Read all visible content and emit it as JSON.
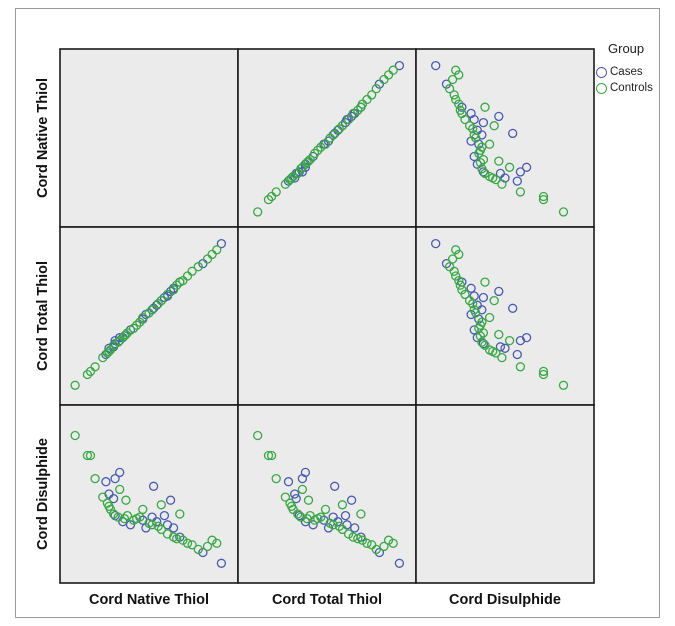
{
  "chart_data": {
    "type": "scatter",
    "variables": [
      "Cord Native Thiol",
      "Cord Total Thiol",
      "Cord Disulphide"
    ],
    "legend": {
      "title": "Group",
      "position": "top-right",
      "items": [
        {
          "name": "Cases",
          "color": "#4a5bb0"
        },
        {
          "name": "Controls",
          "color": "#3aa845"
        }
      ]
    },
    "grid": false,
    "panel_background": "#ebebeb",
    "series": [
      {
        "name": "Cases",
        "color": "#4a5bb0",
        "points": [
          {
            "native": 0.97,
            "total": 0.97,
            "disulphide": 0.05
          },
          {
            "native": 0.7,
            "total": 0.72,
            "disulphide": 0.22
          },
          {
            "native": 0.66,
            "total": 0.68,
            "disulphide": 0.28
          },
          {
            "native": 0.6,
            "total": 0.62,
            "disulphide": 0.36
          },
          {
            "native": 0.62,
            "total": 0.63,
            "disulphide": 0.3
          },
          {
            "native": 0.55,
            "total": 0.57,
            "disulphide": 0.32
          },
          {
            "native": 0.52,
            "total": 0.54,
            "disulphide": 0.35
          },
          {
            "native": 0.46,
            "total": 0.48,
            "disulphide": 0.33
          },
          {
            "native": 0.38,
            "total": 0.41,
            "disulphide": 0.3
          },
          {
            "native": 0.33,
            "total": 0.36,
            "disulphide": 0.32
          },
          {
            "native": 0.28,
            "total": 0.32,
            "disulphide": 0.36
          },
          {
            "native": 0.22,
            "total": 0.25,
            "disulphide": 0.58
          },
          {
            "native": 0.24,
            "total": 0.29,
            "disulphide": 0.5
          },
          {
            "native": 0.28,
            "total": 0.34,
            "disulphide": 0.6
          },
          {
            "native": 0.31,
            "total": 0.36,
            "disulphide": 0.64
          },
          {
            "native": 0.27,
            "total": 0.3,
            "disulphide": 0.47
          },
          {
            "native": 0.53,
            "total": 0.55,
            "disulphide": 0.55
          },
          {
            "native": 0.64,
            "total": 0.66,
            "disulphide": 0.46
          },
          {
            "native": 0.85,
            "total": 0.84,
            "disulphide": 0.12
          },
          {
            "native": 0.48,
            "total": 0.51,
            "disulphide": 0.28
          }
        ]
      },
      {
        "name": "Controls",
        "color": "#3aa845",
        "points": [
          {
            "native": 0.02,
            "total": 0.05,
            "disulphide": 0.88
          },
          {
            "native": 0.1,
            "total": 0.12,
            "disulphide": 0.75
          },
          {
            "native": 0.12,
            "total": 0.14,
            "disulphide": 0.75
          },
          {
            "native": 0.15,
            "total": 0.17,
            "disulphide": 0.6
          },
          {
            "native": 0.2,
            "total": 0.23,
            "disulphide": 0.48
          },
          {
            "native": 0.23,
            "total": 0.26,
            "disulphide": 0.44
          },
          {
            "native": 0.25,
            "total": 0.28,
            "disulphide": 0.4
          },
          {
            "native": 0.27,
            "total": 0.31,
            "disulphide": 0.37
          },
          {
            "native": 0.3,
            "total": 0.33,
            "disulphide": 0.35
          },
          {
            "native": 0.34,
            "total": 0.37,
            "disulphide": 0.34
          },
          {
            "native": 0.36,
            "total": 0.39,
            "disulphide": 0.36
          },
          {
            "native": 0.4,
            "total": 0.42,
            "disulphide": 0.33
          },
          {
            "native": 0.42,
            "total": 0.44,
            "disulphide": 0.34
          },
          {
            "native": 0.44,
            "total": 0.46,
            "disulphide": 0.35
          },
          {
            "native": 0.5,
            "total": 0.52,
            "disulphide": 0.31
          },
          {
            "native": 0.56,
            "total": 0.58,
            "disulphide": 0.29
          },
          {
            "native": 0.58,
            "total": 0.6,
            "disulphide": 0.27
          },
          {
            "native": 0.62,
            "total": 0.64,
            "disulphide": 0.24
          },
          {
            "native": 0.66,
            "total": 0.67,
            "disulphide": 0.22
          },
          {
            "native": 0.68,
            "total": 0.7,
            "disulphide": 0.21
          },
          {
            "native": 0.72,
            "total": 0.73,
            "disulphide": 0.2
          },
          {
            "native": 0.75,
            "total": 0.76,
            "disulphide": 0.18
          },
          {
            "native": 0.78,
            "total": 0.79,
            "disulphide": 0.17
          },
          {
            "native": 0.82,
            "total": 0.82,
            "disulphide": 0.14
          },
          {
            "native": 0.88,
            "total": 0.87,
            "disulphide": 0.16
          },
          {
            "native": 0.91,
            "total": 0.9,
            "disulphide": 0.2
          },
          {
            "native": 0.94,
            "total": 0.93,
            "disulphide": 0.18
          },
          {
            "native": 0.31,
            "total": 0.34,
            "disulphide": 0.53
          },
          {
            "native": 0.35,
            "total": 0.38,
            "disulphide": 0.46
          },
          {
            "native": 0.46,
            "total": 0.49,
            "disulphide": 0.4
          },
          {
            "native": 0.58,
            "total": 0.6,
            "disulphide": 0.43
          },
          {
            "native": 0.7,
            "total": 0.72,
            "disulphide": 0.37
          },
          {
            "native": 0.24,
            "total": 0.27,
            "disulphide": 0.42
          },
          {
            "native": 0.52,
            "total": 0.54,
            "disulphide": 0.3
          }
        ]
      }
    ]
  }
}
